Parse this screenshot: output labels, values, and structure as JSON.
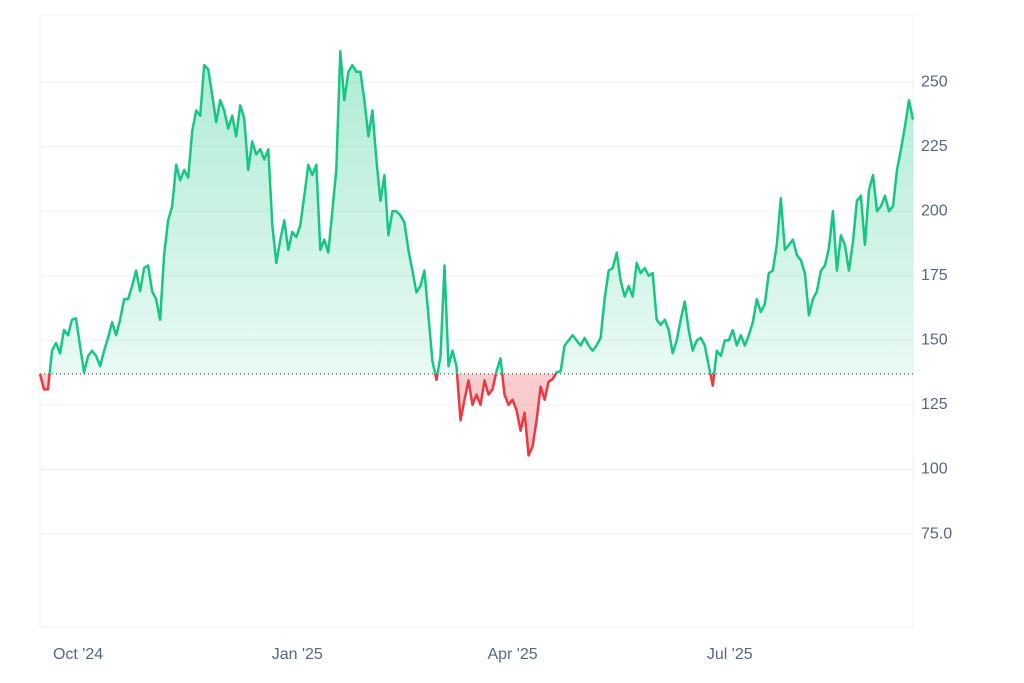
{
  "chart_data": {
    "type": "baseline-line",
    "values": [
      137,
      131,
      131,
      146,
      149,
      145,
      154,
      152,
      158,
      158.5,
      148,
      137.6,
      144,
      146,
      144,
      140,
      146,
      151,
      157,
      152,
      158,
      166,
      166,
      171,
      177,
      169,
      178,
      179,
      169,
      166,
      158,
      183,
      196.5,
      202,
      218,
      212,
      216,
      213,
      231,
      239,
      237,
      256.6,
      255,
      245,
      234.5,
      243,
      239,
      232,
      237,
      229,
      241,
      236,
      216,
      227,
      222,
      224,
      220,
      224,
      194.6,
      180,
      189,
      196.5,
      185,
      192,
      190,
      194.6,
      206,
      218,
      214,
      218,
      185,
      189,
      184,
      200,
      216,
      262,
      243,
      254,
      256.6,
      254,
      254,
      243,
      229,
      239,
      220,
      204,
      214,
      190.7,
      200,
      200,
      198.4,
      195.7,
      185,
      177,
      168.6,
      171,
      177,
      159.7,
      142,
      134.7,
      144,
      179,
      140,
      146,
      140,
      119,
      127,
      134.5,
      125,
      129,
      125,
      134.5,
      129,
      131,
      138,
      143,
      129,
      125,
      127,
      123,
      115,
      122,
      105.4,
      109,
      119,
      132,
      127,
      134,
      135,
      137.6,
      138,
      148,
      150,
      152,
      150,
      148,
      151,
      148,
      146,
      148,
      151,
      166,
      177,
      178,
      184,
      173,
      167,
      171,
      167,
      180,
      176,
      178,
      175,
      176,
      158,
      156,
      158,
      154,
      145,
      150,
      158,
      165,
      154,
      146,
      150,
      151,
      148,
      140,
      132.5,
      146,
      144,
      150,
      150,
      154,
      148,
      152,
      148,
      152,
      157,
      166,
      161,
      164,
      176,
      177,
      187,
      205,
      185,
      187,
      189,
      183,
      181,
      176,
      159.7,
      166,
      169,
      177,
      179,
      185.7,
      200,
      177,
      190.7,
      187,
      177,
      188,
      204,
      206,
      187,
      208,
      214,
      200,
      202,
      206,
      200,
      202,
      216,
      224,
      233,
      243,
      235.5
    ],
    "color": "#16c784",
    "negative_color": "#ea3943",
    "baseline": 137,
    "xlim": [
      0,
      218
    ],
    "xticks": [
      {
        "value": 9.5,
        "label": "Oct '24"
      },
      {
        "value": 64.25,
        "label": "Jan '25"
      },
      {
        "value": 118,
        "label": "Apr '25"
      },
      {
        "value": 172.25,
        "label": "Jul '25"
      }
    ],
    "ylim": [
      39,
      276
    ],
    "yticks": [
      {
        "value": 75,
        "label": "75.0"
      },
      100,
      125,
      150,
      175,
      200,
      225,
      250
    ],
    "grid": true
  }
}
